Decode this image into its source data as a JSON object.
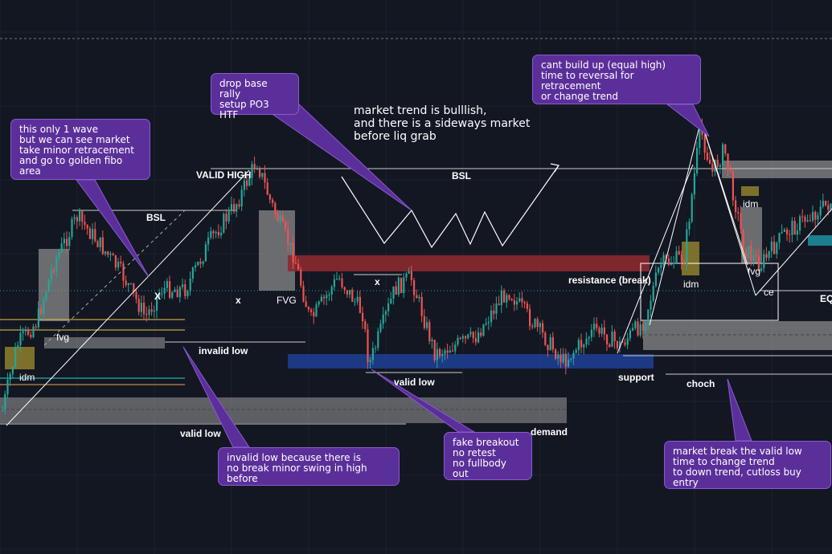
{
  "chart_data": {
    "type": "candlestick",
    "title": "",
    "xlabel": "",
    "ylabel": "",
    "grid": true,
    "annotations": {
      "callouts": {
        "wave": "this only 1 wave\nbut we can see market\ntake minor retracement\nand go to golden fibo area",
        "drop_base_rally": "drop base rally\nsetup PO3 HTF",
        "equal_high": "cant build up (equal high)\ntime to reversal for retracement\nor change trend",
        "invalid_low_reason": "invalid low because there is\nno break minor swing in high before",
        "fake_breakout": "fake breakout\nno retest\nno fullbody out",
        "market_break": "market break the valid low\ntime to change trend\nto down trend, cutloss buy entry"
      },
      "trend_note": "market trend is bulllish,\nand there is a sideways market\nbefore liq grab",
      "labels": {
        "valid_high": "VALID HIGH",
        "bsl_left": "BSL",
        "bsl_center": "BSL",
        "x_left_upper": "X",
        "x_left_lower": "x",
        "x_mid": "x",
        "fvg_left": "fvg",
        "fvg_mid": "FVG",
        "fvg_right": "fvg",
        "idm_left": "idm",
        "idm_right_low": "idm",
        "idm_right_high": "idm",
        "invalid_low": "invalid low",
        "valid_low_bottom": "valid low",
        "valid_low_mid": "valid low",
        "demand": "demand",
        "resistance": "resistance (break)",
        "support": "support",
        "choch": "choch",
        "ce": "ce",
        "eq": "EQ"
      }
    },
    "colors": {
      "background": "#131722",
      "bull": "#26a69a",
      "bear": "#ef5350",
      "callout": "#5b2f9a",
      "resistance_zone": "#8b2a30",
      "support_zone": "#1e3d8f",
      "gray_zone": "#9a9a9a",
      "idm_zone": "#8a7a2c"
    }
  }
}
